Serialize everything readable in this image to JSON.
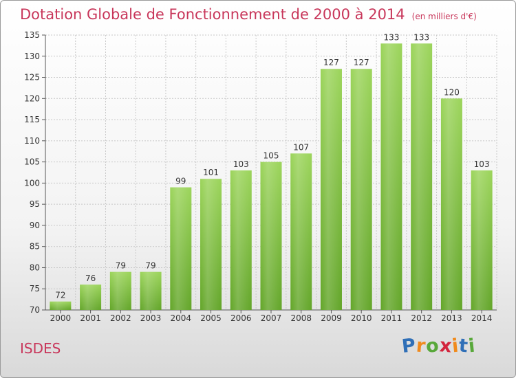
{
  "chart_data": {
    "type": "bar",
    "title": "Dotation Globale de Fonctionnement de 2000 à 2014",
    "subtitle": "(en milliers d'€)",
    "categories": [
      "2000",
      "2001",
      "2002",
      "2003",
      "2004",
      "2005",
      "2006",
      "2007",
      "2008",
      "2009",
      "2010",
      "2011",
      "2012",
      "2013",
      "2014"
    ],
    "values": [
      72,
      76,
      79,
      79,
      99,
      101,
      103,
      105,
      107,
      127,
      127,
      133,
      133,
      120,
      103
    ],
    "ylim": [
      70,
      135
    ],
    "yticks": [
      70,
      75,
      80,
      85,
      90,
      95,
      100,
      105,
      110,
      115,
      120,
      125,
      130,
      135
    ],
    "grid": true,
    "bar_color": "#7cc242"
  },
  "footer": {
    "commune": "ISDES",
    "logo_letters": [
      "P",
      "r",
      "o",
      "x",
      "i",
      "t",
      "i"
    ],
    "logo_colors": [
      "#2f6fb7",
      "#f08a1c",
      "#58a83a",
      "#d3243c",
      "#f08a1c",
      "#2f6fb7",
      "#58a83a"
    ]
  }
}
